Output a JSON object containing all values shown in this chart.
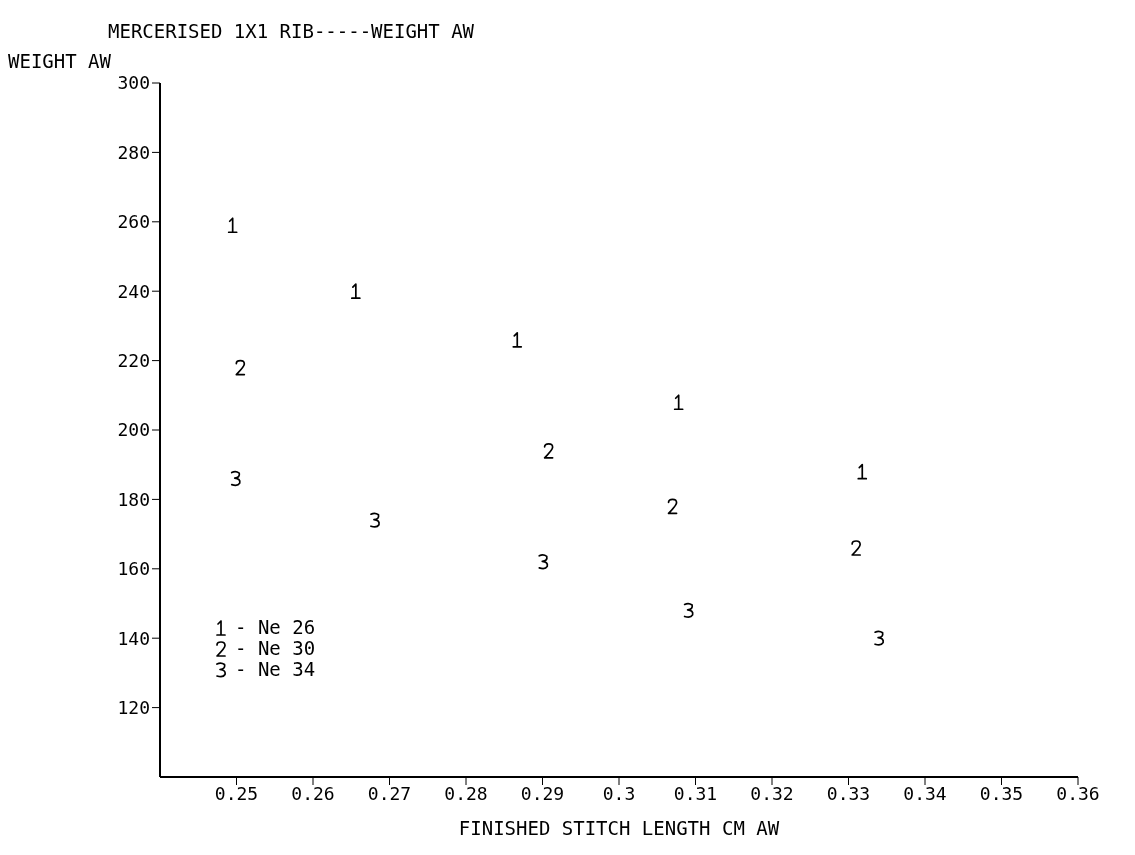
{
  "chart_data": {
    "type": "scatter",
    "title": "MERCERISED 1X1 RIB-----WEIGHT AW",
    "xlabel": "FINISHED STITCH LENGTH CM AW",
    "ylabel": "WEIGHT AW",
    "series": [
      {
        "name": "- Ne 26",
        "color": "#000000",
        "x": [
          0.2495,
          0.2656,
          0.2867,
          0.3078,
          0.3318
        ],
        "values": [
          259,
          240,
          226,
          208,
          188
        ]
      },
      {
        "name": "- Ne 30",
        "color": "#000000",
        "x": [
          0.2505,
          0.2908,
          0.307,
          0.331
        ],
        "values": [
          218,
          194,
          178,
          166
        ]
      },
      {
        "name": "- Ne 34",
        "color": "#000000",
        "x": [
          0.2499,
          0.2681,
          0.2901,
          0.3091,
          0.334
        ],
        "values": [
          186,
          174,
          162,
          148,
          140
        ]
      }
    ],
    "xlim": [
      0.24,
      0.36
    ],
    "xticks": [
      0.25,
      0.26,
      0.27,
      0.28,
      0.29,
      0.3,
      0.31,
      0.32,
      0.33,
      0.34,
      0.35,
      0.36
    ],
    "ylim": [
      100,
      300
    ],
    "yticks": [
      120,
      140,
      160,
      180,
      200,
      220,
      240,
      260,
      280,
      300
    ],
    "grid": false,
    "legend": "bottom left"
  }
}
